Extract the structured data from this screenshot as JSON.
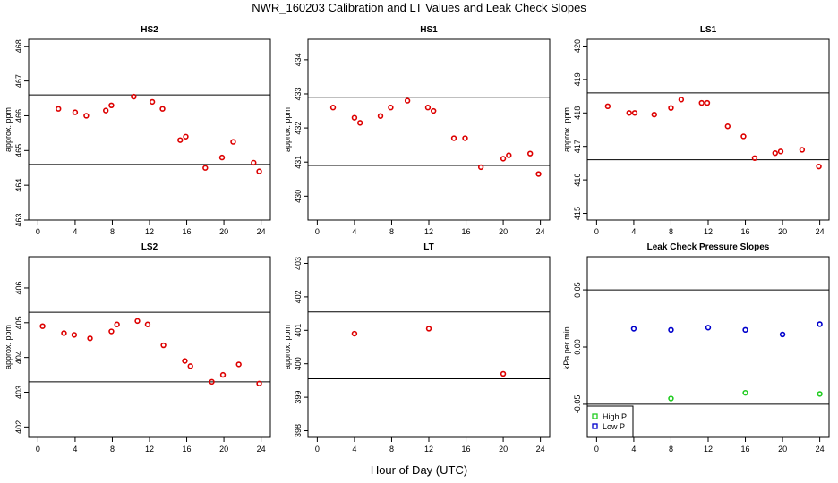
{
  "title": "NWR_160203  Calibration and LT Values and Leak Check Slopes",
  "xlabel": "Hour of Day (UTC)",
  "colors": {
    "cal": "#dd0000",
    "high_p": "#22cc22",
    "low_p": "#0000cc",
    "axis": "#000000"
  },
  "chart_data": [
    {
      "type": "scatter",
      "title": "HS2",
      "ylabel": "approx. ppm",
      "xlim": [
        -1,
        25
      ],
      "ylim": [
        463,
        468.2
      ],
      "xticks": [
        0,
        4,
        8,
        12,
        16,
        20,
        24
      ],
      "yticks": [
        463,
        464,
        465,
        466,
        467,
        468
      ],
      "hlines": [
        466.6,
        464.6
      ],
      "series": [
        {
          "x": [
            2.2,
            4.0,
            5.2,
            7.3,
            7.9,
            10.3,
            12.3,
            13.4,
            15.3,
            15.9,
            18.0,
            19.8,
            21.0,
            23.2,
            23.8
          ],
          "y": [
            466.2,
            466.1,
            466.0,
            466.15,
            466.3,
            466.55,
            466.4,
            466.2,
            465.3,
            465.4,
            464.5,
            464.8,
            465.25,
            464.65,
            464.4
          ]
        }
      ]
    },
    {
      "type": "scatter",
      "title": "HS1",
      "ylabel": "approx. ppm",
      "xlim": [
        -1,
        25
      ],
      "ylim": [
        429.3,
        434.6
      ],
      "xticks": [
        0,
        4,
        8,
        12,
        16,
        20,
        24
      ],
      "yticks": [
        430,
        431,
        432,
        433,
        434
      ],
      "hlines": [
        432.9,
        430.9
      ],
      "series": [
        {
          "x": [
            1.7,
            4.0,
            4.6,
            6.8,
            7.9,
            9.7,
            11.9,
            12.5,
            14.7,
            15.9,
            17.6,
            20.0,
            20.6,
            22.9,
            23.8
          ],
          "y": [
            432.6,
            432.3,
            432.15,
            432.35,
            432.6,
            432.8,
            432.6,
            432.5,
            431.7,
            431.7,
            430.85,
            431.1,
            431.2,
            431.25,
            430.65
          ]
        }
      ]
    },
    {
      "type": "scatter",
      "title": "LS1",
      "ylabel": "approx. ppm",
      "xlim": [
        -1,
        25
      ],
      "ylim": [
        414.8,
        420.2
      ],
      "xticks": [
        0,
        4,
        8,
        12,
        16,
        20,
        24
      ],
      "yticks": [
        415,
        416,
        417,
        418,
        419,
        420
      ],
      "hlines": [
        418.6,
        416.6
      ],
      "series": [
        {
          "x": [
            1.2,
            3.5,
            4.1,
            6.2,
            8.0,
            9.1,
            11.3,
            11.9,
            14.1,
            15.8,
            17.0,
            19.2,
            19.8,
            22.1,
            23.9
          ],
          "y": [
            418.2,
            418.0,
            418.0,
            417.95,
            418.15,
            418.4,
            418.3,
            418.3,
            417.6,
            417.3,
            416.65,
            416.8,
            416.85,
            416.9,
            416.4
          ]
        }
      ]
    },
    {
      "type": "scatter",
      "title": "LS2",
      "ylabel": "approx. ppm",
      "xlim": [
        -1,
        25
      ],
      "ylim": [
        401.7,
        406.9
      ],
      "xticks": [
        0,
        4,
        8,
        12,
        16,
        20,
        24
      ],
      "yticks": [
        402,
        403,
        404,
        405,
        406
      ],
      "hlines": [
        405.3,
        403.3
      ],
      "series": [
        {
          "x": [
            0.5,
            2.8,
            3.9,
            5.6,
            7.9,
            8.5,
            10.7,
            11.8,
            13.5,
            15.8,
            16.4,
            18.7,
            19.9,
            21.6,
            23.8
          ],
          "y": [
            404.9,
            404.7,
            404.65,
            404.55,
            404.75,
            404.95,
            405.05,
            404.95,
            404.35,
            403.9,
            403.75,
            403.3,
            403.5,
            403.8,
            403.25
          ]
        }
      ]
    },
    {
      "type": "scatter",
      "title": "LT",
      "ylabel": "approx. ppm",
      "xlim": [
        -1,
        25
      ],
      "ylim": [
        397.8,
        403.2
      ],
      "xticks": [
        0,
        4,
        8,
        12,
        16,
        20,
        24
      ],
      "yticks": [
        398,
        399,
        400,
        401,
        402,
        403
      ],
      "hlines": [
        401.55,
        399.55
      ],
      "series": [
        {
          "x": [
            4.0,
            12.0,
            20.0
          ],
          "y": [
            400.9,
            401.05,
            399.7
          ]
        }
      ]
    },
    {
      "type": "scatter",
      "title": "Leak Check Pressure Slopes",
      "ylabel": "kPa per min.",
      "xlim": [
        -1,
        25
      ],
      "ylim": [
        -0.079,
        0.079
      ],
      "xticks": [
        0,
        4,
        8,
        12,
        16,
        20,
        24
      ],
      "yticks": [
        -0.05,
        0.0,
        0.05
      ],
      "ytick_labels": [
        "-0.05",
        "0.00",
        "0.05"
      ],
      "hlines": [
        0.05,
        -0.05
      ],
      "legend": {
        "position": "bottom-left",
        "entries": [
          "High P",
          "Low P"
        ]
      },
      "series": [
        {
          "name": "High P",
          "x": [
            8,
            16,
            24
          ],
          "y": [
            -0.045,
            -0.04,
            -0.041
          ]
        },
        {
          "name": "Low P",
          "x": [
            4,
            8,
            12,
            16,
            20,
            24
          ],
          "y": [
            0.016,
            0.015,
            0.017,
            0.015,
            0.011,
            0.02
          ]
        }
      ]
    }
  ]
}
